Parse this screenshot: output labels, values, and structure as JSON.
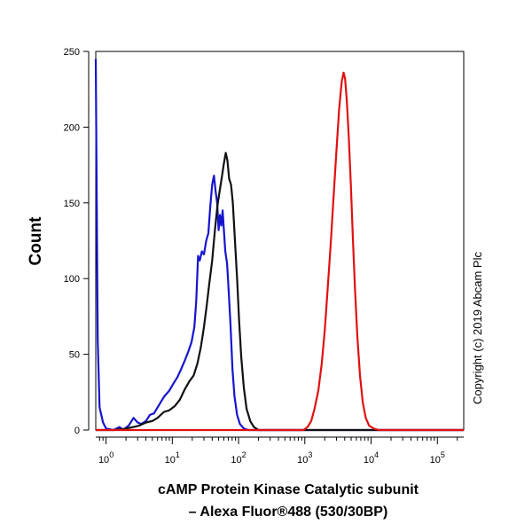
{
  "chart_data": {
    "type": "line",
    "xscale": "log",
    "xlim": [
      0.7,
      250000
    ],
    "ylim": [
      0,
      250
    ],
    "grid": false,
    "legend": "none",
    "ylabel": "Count",
    "xlabel_line1": "cAMP Protein Kinase Catalytic subunit",
    "xlabel_line2": "– Alexa Fluor®488 (530/30BP)",
    "y_ticks": [
      0,
      50,
      100,
      150,
      200,
      250
    ],
    "x_ticks": [
      {
        "value": 1,
        "base": "10",
        "exp": "0"
      },
      {
        "value": 10,
        "base": "10",
        "exp": "1"
      },
      {
        "value": 100,
        "base": "10",
        "exp": "2"
      },
      {
        "value": 1000,
        "base": "10",
        "exp": "3"
      },
      {
        "value": 10000,
        "base": "10",
        "exp": "4"
      },
      {
        "value": 100000,
        "base": "10",
        "exp": "5"
      }
    ],
    "copyright": "Copyright (c) 2019 Abcam Plc",
    "series": [
      {
        "color": "#1515d0",
        "points": [
          [
            0.7,
            245
          ],
          [
            0.75,
            60
          ],
          [
            0.8,
            15
          ],
          [
            0.9,
            5
          ],
          [
            1.0,
            1
          ],
          [
            1.3,
            0
          ],
          [
            1.6,
            2
          ],
          [
            1.8,
            0
          ],
          [
            2.2,
            3
          ],
          [
            2.6,
            8
          ],
          [
            3.0,
            5
          ],
          [
            3.4,
            4
          ],
          [
            4.0,
            6
          ],
          [
            4.6,
            10
          ],
          [
            5.3,
            11
          ],
          [
            6.2,
            16
          ],
          [
            7.5,
            22
          ],
          [
            9.0,
            26
          ],
          [
            10.5,
            31
          ],
          [
            12.0,
            35
          ],
          [
            13.5,
            40
          ],
          [
            15.5,
            46
          ],
          [
            17.5,
            52
          ],
          [
            19.5,
            58
          ],
          [
            21.5,
            68
          ],
          [
            23.0,
            85
          ],
          [
            24.5,
            115
          ],
          [
            26.0,
            112
          ],
          [
            28.0,
            118
          ],
          [
            30.0,
            116
          ],
          [
            32.5,
            125
          ],
          [
            35.0,
            130
          ],
          [
            37.5,
            148
          ],
          [
            40.0,
            162
          ],
          [
            42.5,
            168
          ],
          [
            45.0,
            158
          ],
          [
            47.5,
            150
          ],
          [
            50.0,
            132
          ],
          [
            52.5,
            142
          ],
          [
            55.0,
            135
          ],
          [
            57.5,
            145
          ],
          [
            60.0,
            132
          ],
          [
            63.0,
            118
          ],
          [
            67.0,
            110
          ],
          [
            71.0,
            92
          ],
          [
            76.0,
            68
          ],
          [
            81.0,
            40
          ],
          [
            87.0,
            22
          ],
          [
            95.0,
            10
          ],
          [
            105.0,
            4
          ],
          [
            120.0,
            1
          ],
          [
            140.0,
            0
          ],
          [
            250000,
            0
          ]
        ]
      },
      {
        "color": "#111111",
        "points": [
          [
            0.7,
            0
          ],
          [
            1.3,
            0
          ],
          [
            2.0,
            1
          ],
          [
            2.6,
            2
          ],
          [
            3.2,
            3
          ],
          [
            4.0,
            5
          ],
          [
            5.0,
            6
          ],
          [
            6.0,
            8
          ],
          [
            7.5,
            12
          ],
          [
            9.0,
            13
          ],
          [
            11.0,
            16
          ],
          [
            13.0,
            20
          ],
          [
            15.5,
            27
          ],
          [
            18.0,
            32
          ],
          [
            21.0,
            36
          ],
          [
            24.0,
            44
          ],
          [
            27.0,
            55
          ],
          [
            30.0,
            68
          ],
          [
            33.0,
            82
          ],
          [
            36.0,
            96
          ],
          [
            40.0,
            112
          ],
          [
            44.0,
            132
          ],
          [
            48.0,
            148
          ],
          [
            52.0,
            158
          ],
          [
            56.0,
            167
          ],
          [
            60.0,
            176
          ],
          [
            64.0,
            183
          ],
          [
            68.0,
            178
          ],
          [
            72.0,
            166
          ],
          [
            77.0,
            162
          ],
          [
            82.0,
            150
          ],
          [
            88.0,
            126
          ],
          [
            95.0,
            100
          ],
          [
            102.0,
            72
          ],
          [
            110.0,
            48
          ],
          [
            120.0,
            28
          ],
          [
            132.0,
            14
          ],
          [
            150.0,
            6
          ],
          [
            170.0,
            2
          ],
          [
            200.0,
            0
          ],
          [
            250000,
            0
          ]
        ]
      },
      {
        "color": "#e01010",
        "points": [
          [
            0.7,
            0
          ],
          [
            950,
            0
          ],
          [
            1100,
            2
          ],
          [
            1250,
            6
          ],
          [
            1400,
            14
          ],
          [
            1600,
            26
          ],
          [
            1800,
            44
          ],
          [
            2000,
            66
          ],
          [
            2200,
            92
          ],
          [
            2450,
            122
          ],
          [
            2700,
            152
          ],
          [
            3000,
            184
          ],
          [
            3300,
            212
          ],
          [
            3600,
            230
          ],
          [
            3850,
            236
          ],
          [
            4050,
            232
          ],
          [
            4300,
            218
          ],
          [
            4600,
            194
          ],
          [
            4950,
            162
          ],
          [
            5300,
            128
          ],
          [
            5700,
            94
          ],
          [
            6200,
            62
          ],
          [
            6800,
            36
          ],
          [
            7500,
            18
          ],
          [
            8300,
            8
          ],
          [
            9300,
            3
          ],
          [
            11000,
            1
          ],
          [
            13000,
            0
          ],
          [
            250000,
            0
          ]
        ]
      }
    ]
  }
}
